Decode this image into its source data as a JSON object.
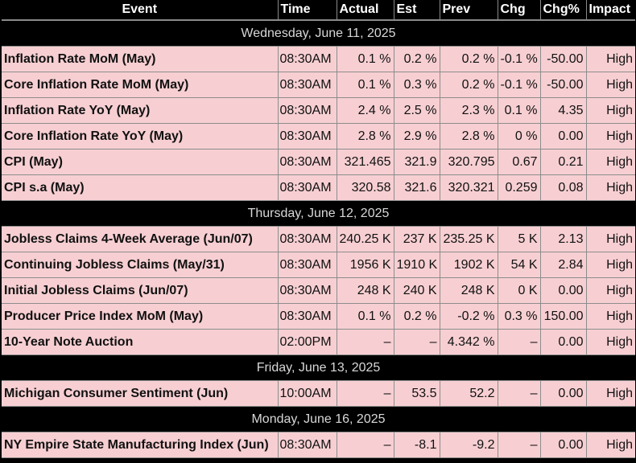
{
  "columns": {
    "event": "Event",
    "time": "Time",
    "actual": "Actual",
    "est": "Est",
    "prev": "Prev",
    "chg": "Chg",
    "chgpct": "Chg%",
    "impact": "Impact"
  },
  "groups": [
    {
      "date": "Wednesday, June 11, 2025",
      "rows": [
        {
          "event": "Inflation Rate MoM (May)",
          "time": "08:30AM",
          "actual": "0.1 %",
          "est": "0.2 %",
          "prev": "0.2 %",
          "chg": "-0.1 %",
          "chgpct": "-50.00",
          "impact": "High"
        },
        {
          "event": "Core Inflation Rate MoM (May)",
          "time": "08:30AM",
          "actual": "0.1 %",
          "est": "0.3 %",
          "prev": "0.2 %",
          "chg": "-0.1 %",
          "chgpct": "-50.00",
          "impact": "High"
        },
        {
          "event": "Inflation Rate YoY (May)",
          "time": "08:30AM",
          "actual": "2.4 %",
          "est": "2.5 %",
          "prev": "2.3 %",
          "chg": "0.1 %",
          "chgpct": "4.35",
          "impact": "High"
        },
        {
          "event": "Core Inflation Rate YoY (May)",
          "time": "08:30AM",
          "actual": "2.8 %",
          "est": "2.9 %",
          "prev": "2.8 %",
          "chg": "0 %",
          "chgpct": "0.00",
          "impact": "High"
        },
        {
          "event": "CPI (May)",
          "time": "08:30AM",
          "actual": "321.465",
          "est": "321.9",
          "prev": "320.795",
          "chg": "0.67",
          "chgpct": "0.21",
          "impact": "High"
        },
        {
          "event": "CPI s.a (May)",
          "time": "08:30AM",
          "actual": "320.58",
          "est": "321.6",
          "prev": "320.321",
          "chg": "0.259",
          "chgpct": "0.08",
          "impact": "High"
        }
      ]
    },
    {
      "date": "Thursday, June 12, 2025",
      "rows": [
        {
          "event": "Jobless Claims 4-Week Average (Jun/07)",
          "time": "08:30AM",
          "actual": "240.25 K",
          "est": "237 K",
          "prev": "235.25 K",
          "chg": "5 K",
          "chgpct": "2.13",
          "impact": "High"
        },
        {
          "event": "Continuing Jobless Claims (May/31)",
          "time": "08:30AM",
          "actual": "1956 K",
          "est": "1910 K",
          "prev": "1902 K",
          "chg": "54 K",
          "chgpct": "2.84",
          "impact": "High"
        },
        {
          "event": "Initial Jobless Claims (Jun/07)",
          "time": "08:30AM",
          "actual": "248 K",
          "est": "240 K",
          "prev": "248 K",
          "chg": "0 K",
          "chgpct": "0.00",
          "impact": "High"
        },
        {
          "event": "Producer Price Index MoM (May)",
          "time": "08:30AM",
          "actual": "0.1 %",
          "est": "0.2 %",
          "prev": "-0.2 %",
          "chg": "0.3 %",
          "chgpct": "150.00",
          "impact": "High"
        },
        {
          "event": "10-Year Note Auction",
          "time": "02:00PM",
          "actual": "–",
          "est": "–",
          "prev": "4.342 %",
          "chg": "–",
          "chgpct": "0.00",
          "impact": "High"
        }
      ]
    },
    {
      "date": "Friday, June 13, 2025",
      "rows": [
        {
          "event": "Michigan Consumer Sentiment (Jun)",
          "time": "10:00AM",
          "actual": "–",
          "est": "53.5",
          "prev": "52.2",
          "chg": "–",
          "chgpct": "0.00",
          "impact": "High"
        }
      ]
    },
    {
      "date": "Monday, June 16, 2025",
      "rows": [
        {
          "event": "NY Empire State Manufacturing Index (Jun)",
          "time": "08:30AM",
          "actual": "–",
          "est": "-8.1",
          "prev": "-9.2",
          "chg": "–",
          "chgpct": "0.00",
          "impact": "High"
        }
      ]
    }
  ]
}
